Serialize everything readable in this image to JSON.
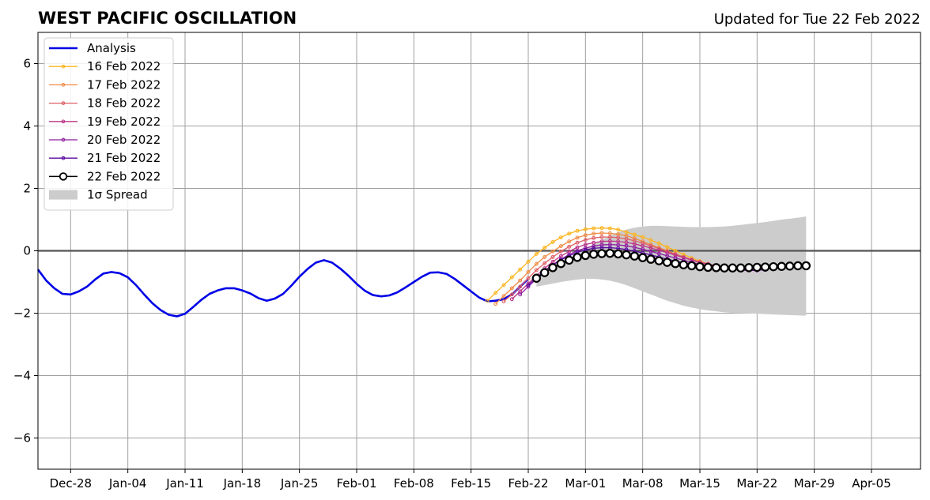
{
  "chart_data": {
    "type": "line",
    "title": "WEST PACIFIC OSCILLATION",
    "subtitle": "Updated for Tue 22 Feb 2022",
    "xlabel": "",
    "ylabel": "",
    "x_range": [
      "2021-12-24",
      "2022-04-11"
    ],
    "ylim": [
      -7,
      7
    ],
    "x_ticks": [
      {
        "date": "2021-12-28",
        "label": "Dec-28"
      },
      {
        "date": "2022-01-04",
        "label": "Jan-04"
      },
      {
        "date": "2022-01-11",
        "label": "Jan-11"
      },
      {
        "date": "2022-01-18",
        "label": "Jan-18"
      },
      {
        "date": "2022-01-25",
        "label": "Jan-25"
      },
      {
        "date": "2022-02-01",
        "label": "Feb-01"
      },
      {
        "date": "2022-02-08",
        "label": "Feb-08"
      },
      {
        "date": "2022-02-15",
        "label": "Feb-15"
      },
      {
        "date": "2022-02-22",
        "label": "Feb-22"
      },
      {
        "date": "2022-03-01",
        "label": "Mar-01"
      },
      {
        "date": "2022-03-08",
        "label": "Mar-08"
      },
      {
        "date": "2022-03-15",
        "label": "Mar-15"
      },
      {
        "date": "2022-03-22",
        "label": "Mar-22"
      },
      {
        "date": "2022-03-29",
        "label": "Mar-29"
      },
      {
        "date": "2022-04-05",
        "label": "Apr-05"
      }
    ],
    "y_ticks": [
      {
        "value": -6,
        "label": "−6"
      },
      {
        "value": -4,
        "label": "−4"
      },
      {
        "value": -2,
        "label": "−2"
      },
      {
        "value": 0,
        "label": "0"
      },
      {
        "value": 2,
        "label": "2"
      },
      {
        "value": 4,
        "label": "4"
      },
      {
        "value": 6,
        "label": "6"
      }
    ],
    "grid": true,
    "zero_line": 0,
    "legend_position": "top-left",
    "legend": [
      {
        "label": "Analysis",
        "kind": "line",
        "color": "#0000e6"
      },
      {
        "label": "16 Feb 2022",
        "kind": "marker-line",
        "color": "#fbb41e"
      },
      {
        "label": "17 Feb 2022",
        "kind": "marker-line",
        "color": "#f08b44"
      },
      {
        "label": "18 Feb 2022",
        "kind": "marker-line",
        "color": "#dd5e66"
      },
      {
        "label": "19 Feb 2022",
        "kind": "marker-line",
        "color": "#bc3587"
      },
      {
        "label": "20 Feb 2022",
        "kind": "marker-line",
        "color": "#8f1ca0"
      },
      {
        "label": "21 Feb 2022",
        "kind": "marker-line",
        "color": "#5a0aa0"
      },
      {
        "label": "22 Feb 2022",
        "kind": "open-circle-line",
        "color": "#000000"
      },
      {
        "label": "1σ Spread",
        "kind": "patch",
        "color": "#cccccc"
      }
    ],
    "analysis": {
      "name": "Analysis",
      "color": "#0000e6",
      "start_date": "2021-12-24",
      "values": [
        -0.6,
        -0.95,
        -1.2,
        -1.38,
        -1.4,
        -1.3,
        -1.15,
        -0.92,
        -0.73,
        -0.68,
        -0.72,
        -0.85,
        -1.1,
        -1.4,
        -1.68,
        -1.9,
        -2.05,
        -2.1,
        -2.02,
        -1.8,
        -1.57,
        -1.38,
        -1.27,
        -1.2,
        -1.2,
        -1.27,
        -1.37,
        -1.52,
        -1.6,
        -1.53,
        -1.38,
        -1.12,
        -0.83,
        -0.58,
        -0.38,
        -0.3,
        -0.38,
        -0.57,
        -0.8,
        -1.06,
        -1.28,
        -1.42,
        -1.46,
        -1.43,
        -1.33,
        -1.17,
        -1.0,
        -0.83,
        -0.7,
        -0.69,
        -0.74,
        -0.9,
        -1.1,
        -1.3,
        -1.5,
        -1.62,
        -1.6,
        -1.55,
        -1.4,
        -1.15,
        -0.9
      ]
    },
    "forecasts": [
      {
        "name": "16 Feb 2022",
        "color": "#fbb41e",
        "start_date": "2022-02-17",
        "values": [
          -1.6,
          -1.35,
          -1.1,
          -0.85,
          -0.6,
          -0.35,
          -0.1,
          0.1,
          0.28,
          0.43,
          0.55,
          0.64,
          0.69,
          0.72,
          0.73,
          0.72,
          0.68,
          0.6,
          0.52,
          0.44,
          0.34,
          0.24,
          0.12,
          0.0,
          -0.12,
          -0.23,
          -0.33,
          -0.42,
          -0.48,
          -0.52
        ]
      },
      {
        "name": "17 Feb 2022",
        "color": "#f08b44",
        "start_date": "2022-02-18",
        "values": [
          -1.7,
          -1.45,
          -1.2,
          -0.95,
          -0.68,
          -0.42,
          -0.2,
          -0.02,
          0.15,
          0.3,
          0.42,
          0.5,
          0.55,
          0.57,
          0.56,
          0.53,
          0.48,
          0.4,
          0.3,
          0.2,
          0.1,
          0.0,
          -0.1,
          -0.2,
          -0.3,
          -0.38,
          -0.45,
          -0.5,
          -0.55,
          -0.58
        ]
      },
      {
        "name": "18 Feb 2022",
        "color": "#dd5e66",
        "start_date": "2022-02-19",
        "values": [
          -1.62,
          -1.4,
          -1.15,
          -0.88,
          -0.62,
          -0.4,
          -0.2,
          -0.02,
          0.13,
          0.26,
          0.35,
          0.41,
          0.44,
          0.44,
          0.42,
          0.38,
          0.32,
          0.25,
          0.16,
          0.07,
          -0.02,
          -0.11,
          -0.2,
          -0.28,
          -0.36,
          -0.42,
          -0.48,
          -0.53,
          -0.57,
          -0.6
        ]
      },
      {
        "name": "19 Feb 2022",
        "color": "#bc3587",
        "start_date": "2022-02-20",
        "values": [
          -1.55,
          -1.3,
          -1.05,
          -0.8,
          -0.56,
          -0.35,
          -0.17,
          -0.02,
          0.11,
          0.2,
          0.26,
          0.3,
          0.31,
          0.3,
          0.27,
          0.22,
          0.16,
          0.09,
          0.02,
          -0.06,
          -0.14,
          -0.22,
          -0.3,
          -0.37,
          -0.43,
          -0.49,
          -0.54,
          -0.58,
          -0.61,
          -0.63
        ]
      },
      {
        "name": "20 Feb 2022",
        "color": "#8f1ca0",
        "start_date": "2022-02-21",
        "values": [
          -1.4,
          -1.15,
          -0.9,
          -0.66,
          -0.45,
          -0.27,
          -0.12,
          0.0,
          0.09,
          0.15,
          0.19,
          0.2,
          0.19,
          0.16,
          0.11,
          0.05,
          -0.02,
          -0.09,
          -0.16,
          -0.23,
          -0.3,
          -0.37,
          -0.43,
          -0.48,
          -0.53,
          -0.57,
          -0.6,
          -0.62,
          -0.63,
          -0.63
        ]
      },
      {
        "name": "21 Feb 2022",
        "color": "#5a0aa0",
        "start_date": "2022-02-22",
        "values": [
          -1.1,
          -0.86,
          -0.64,
          -0.45,
          -0.29,
          -0.16,
          -0.05,
          0.03,
          0.08,
          0.1,
          0.1,
          0.08,
          0.04,
          -0.01,
          -0.07,
          -0.13,
          -0.2,
          -0.27,
          -0.33,
          -0.39,
          -0.44,
          -0.49,
          -0.53,
          -0.56,
          -0.58,
          -0.6,
          -0.61,
          -0.62,
          -0.62,
          -0.61
        ]
      },
      {
        "name": "22 Feb 2022",
        "color": "#000000",
        "start_date": "2022-02-23",
        "values": [
          -0.88,
          -0.7,
          -0.54,
          -0.41,
          -0.3,
          -0.21,
          -0.15,
          -0.11,
          -0.09,
          -0.08,
          -0.1,
          -0.13,
          -0.17,
          -0.22,
          -0.27,
          -0.32,
          -0.37,
          -0.41,
          -0.45,
          -0.48,
          -0.51,
          -0.53,
          -0.54,
          -0.55,
          -0.55,
          -0.55,
          -0.54,
          -0.53,
          -0.52,
          -0.51,
          -0.5,
          -0.49,
          -0.48,
          -0.48
        ]
      }
    ],
    "spread": {
      "name": "1σ Spread",
      "color": "#cccccc",
      "start_date": "2022-02-23",
      "upper": [
        -0.85,
        -0.7,
        -0.55,
        -0.4,
        -0.25,
        -0.1,
        0.05,
        0.2,
        0.35,
        0.48,
        0.6,
        0.68,
        0.74,
        0.78,
        0.8,
        0.8,
        0.79,
        0.78,
        0.77,
        0.76,
        0.76,
        0.76,
        0.77,
        0.78,
        0.8,
        0.83,
        0.86,
        0.89,
        0.92,
        0.96,
        1.0,
        1.03,
        1.06,
        1.1
      ],
      "lower": [
        -1.15,
        -1.1,
        -1.05,
        -1.0,
        -0.96,
        -0.92,
        -0.9,
        -0.9,
        -0.92,
        -0.96,
        -1.02,
        -1.1,
        -1.2,
        -1.3,
        -1.4,
        -1.5,
        -1.6,
        -1.68,
        -1.76,
        -1.82,
        -1.87,
        -1.91,
        -1.94,
        -1.97,
        -1.99,
        -2.0,
        -2.01,
        -2.02,
        -2.03,
        -2.04,
        -2.05,
        -2.06,
        -2.07,
        -2.08
      ]
    }
  }
}
